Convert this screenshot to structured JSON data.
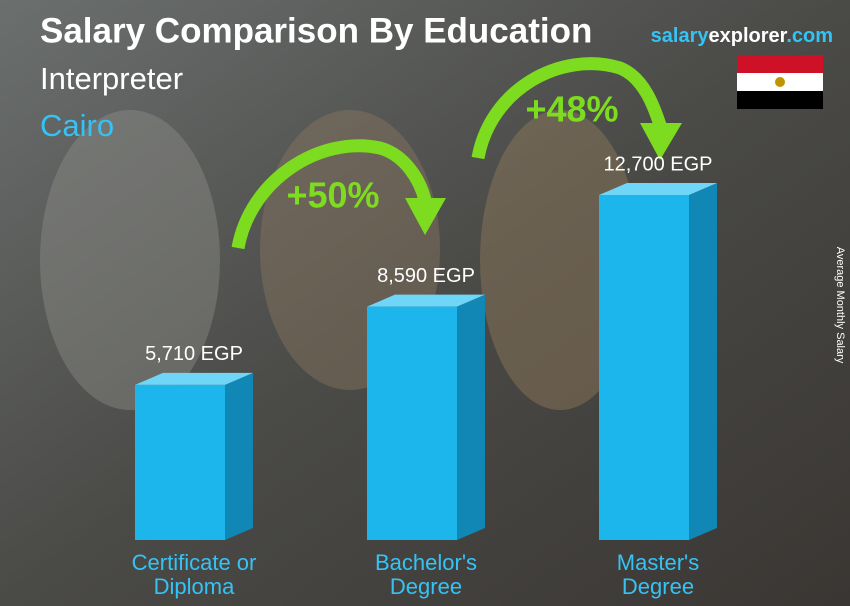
{
  "chart_data": {
    "type": "bar3d",
    "title": "Salary Comparison By Education",
    "subtitle": "Interpreter",
    "location": "Cairo",
    "brand": [
      "salary",
      "explorer",
      ".com"
    ],
    "y_label": "Average Monthly Salary",
    "categories": [
      "Certificate or Diploma",
      "Bachelor's Degree",
      "Master's Degree"
    ],
    "values": [
      5710,
      8590,
      12700
    ],
    "value_labels": [
      "5,710 EGP",
      "8,590 EGP",
      "12,700 EGP"
    ],
    "color": "#1cb6ec",
    "annotations": [
      "+50%",
      "+48%"
    ]
  }
}
